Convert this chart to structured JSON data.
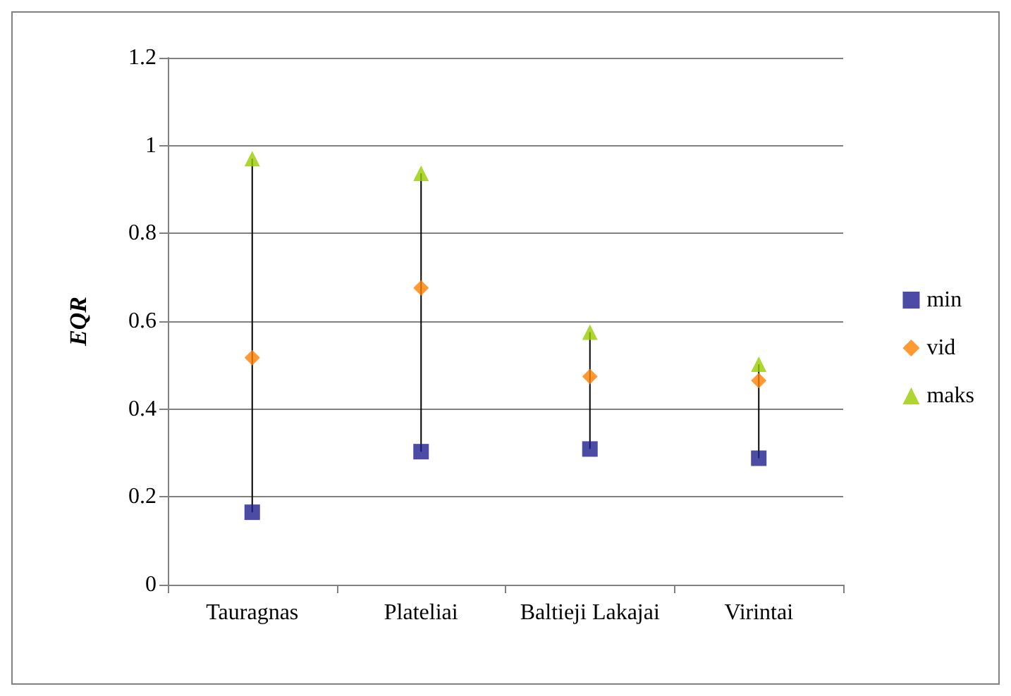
{
  "chart_data": {
    "type": "scatter",
    "ylabel": "EQR",
    "categories": [
      "Tauragnas",
      "Plateliai",
      "Baltieji Lakajai",
      "Virintai"
    ],
    "series": [
      {
        "name": "min",
        "color": "#1f1f8f",
        "marker": "square",
        "values": [
          0.165,
          0.303,
          0.309,
          0.288
        ]
      },
      {
        "name": "vid",
        "color": "#ff7f00",
        "marker": "diamond",
        "values": [
          0.517,
          0.676,
          0.474,
          0.465
        ]
      },
      {
        "name": "maks",
        "color": "#99cc00",
        "marker": "triangle",
        "values": [
          0.97,
          0.937,
          0.575,
          0.502
        ]
      }
    ],
    "ylim": [
      0,
      1.2
    ],
    "yticks": [
      0,
      0.2,
      0.4,
      0.6,
      0.8,
      1,
      1.2
    ],
    "grid": "y",
    "legend": "right"
  }
}
